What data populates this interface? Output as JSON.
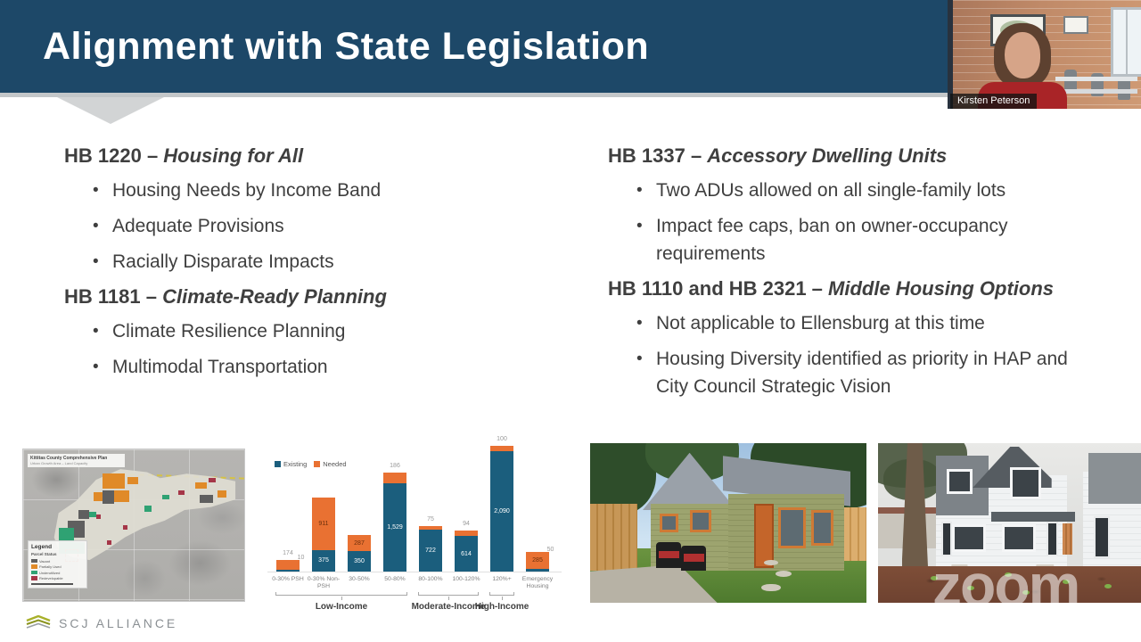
{
  "slide": {
    "title": "Alignment with State Legislation",
    "sections_left": [
      {
        "bill": "HB 1220 – ",
        "name": "Housing for All",
        "bullets": [
          "Housing Needs by Income Band",
          "Adequate Provisions",
          "Racially Disparate Impacts"
        ]
      },
      {
        "bill": "HB 1181 – ",
        "name": "Climate-Ready Planning",
        "bullets": [
          "Climate Resilience Planning",
          "Multimodal Transportation"
        ]
      }
    ],
    "sections_right": [
      {
        "bill": "HB 1337 – ",
        "name": "Accessory Dwelling Units",
        "bullets": [
          "Two ADUs allowed on all single-family lots",
          "Impact fee caps, ban on owner-occupancy requirements"
        ]
      },
      {
        "bill": "HB 1110 and HB 2321 – ",
        "name": "Middle Housing Options",
        "bullets": [
          "Not applicable to Ellensburg at this time",
          "Housing Diversity identified as priority in HAP and City Council Strategic Vision"
        ]
      }
    ]
  },
  "webcam": {
    "name_tag": "Kirsten Peterson"
  },
  "map": {
    "title": "Kittitas County Comprehensive Plan",
    "subtitle": "Urban Growth Area – Land Capacity",
    "legend": {
      "title": "Legend",
      "subtitle": "Parcel Status",
      "items": [
        {
          "label": "Vacant",
          "color": "#5f5f5f"
        },
        {
          "label": "Partially Used",
          "color": "#e08a28"
        },
        {
          "label": "Underutilized",
          "color": "#2fa273"
        },
        {
          "label": "Redevelopable",
          "color": "#a53648"
        }
      ]
    }
  },
  "chart_data": {
    "type": "bar",
    "stacked": true,
    "legend_position": "top-left",
    "colors": {
      "existing": "#1b5e7d",
      "needed": "#e97132"
    },
    "categories": [
      "0-30% PSH",
      "0-30% Non-PSH",
      "30-50%",
      "50-80%",
      "80-100%",
      "100-120%",
      "120%+",
      "Emergency Housing"
    ],
    "series": [
      {
        "name": "Existing",
        "values": [
          10,
          375,
          350,
          1529,
          722,
          614,
          2090,
          50
        ]
      },
      {
        "name": "Needed",
        "values": [
          174,
          911,
          287,
          186,
          75,
          94,
          100,
          285
        ]
      }
    ],
    "groups": [
      {
        "label": "Low-Income",
        "from": 0,
        "to": 3
      },
      {
        "label": "Moderate-Income",
        "from": 4,
        "to": 5
      },
      {
        "label": "High-Income",
        "from": 6,
        "to": 6
      }
    ],
    "ylim": [
      0,
      2250
    ],
    "grid": false
  },
  "watermark": {
    "text": "zoom"
  },
  "footer": {
    "logo_text": "SCJ Alliance"
  }
}
